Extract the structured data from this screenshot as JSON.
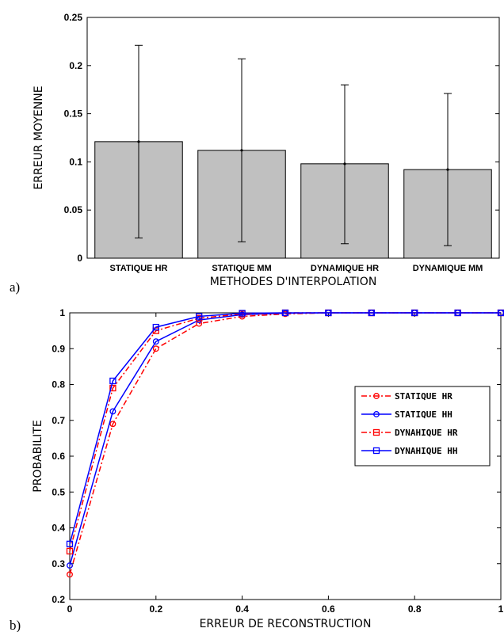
{
  "chart_data": [
    {
      "type": "bar",
      "panel_label": "a)",
      "categories": [
        "STATIQUE HR",
        "STATIQUE MM",
        "DYNAMIQUE HR",
        "DYNAMIQUE MM"
      ],
      "values": [
        0.121,
        0.112,
        0.098,
        0.092
      ],
      "error_low": [
        0.021,
        0.017,
        0.015,
        0.013
      ],
      "error_high": [
        0.221,
        0.207,
        0.18,
        0.171
      ],
      "xlabel": "METHODES D'INTERPOLATION",
      "ylabel": "ERREUR MOYENNE",
      "ylim": [
        0,
        0.25
      ],
      "yticks": [
        "0",
        "0.05",
        "0.1",
        "0.15",
        "0.2",
        "0.25"
      ],
      "colors": {
        "bar": "#c0c0c0"
      }
    },
    {
      "type": "line",
      "panel_label": "b)",
      "x": [
        0,
        0.1,
        0.2,
        0.3,
        0.4,
        0.5,
        0.6,
        0.7,
        0.8,
        0.9,
        1
      ],
      "series": [
        {
          "name": "STATIQUE HR",
          "values": [
            0.27,
            0.69,
            0.9,
            0.97,
            0.99,
            0.997,
            1,
            1,
            1,
            1,
            1
          ],
          "color": "#ff0000",
          "dash": "dashdot",
          "marker": "circle"
        },
        {
          "name": "STATIQUE HH",
          "values": [
            0.295,
            0.725,
            0.92,
            0.98,
            0.995,
            0.999,
            1,
            1,
            1,
            1,
            1
          ],
          "color": "#0000ff",
          "dash": "solid",
          "marker": "circle"
        },
        {
          "name": "DYNAHIQUE HR",
          "values": [
            0.335,
            0.79,
            0.95,
            0.985,
            0.997,
            1,
            1,
            1,
            1,
            1,
            1
          ],
          "color": "#ff0000",
          "dash": "dashdot",
          "marker": "square"
        },
        {
          "name": "DYNAHIQUE HH",
          "values": [
            0.355,
            0.81,
            0.96,
            0.99,
            0.999,
            1,
            1,
            1,
            1,
            1,
            1
          ],
          "color": "#0000ff",
          "dash": "solid",
          "marker": "square"
        }
      ],
      "xlabel": "ERREUR DE RECONSTRUCTION",
      "ylabel": "PROBABILITE",
      "xlim": [
        0,
        1
      ],
      "ylim": [
        0.2,
        1
      ],
      "xticks": [
        "0",
        "0.2",
        "0.4",
        "0.6",
        "0.8",
        "1"
      ],
      "yticks": [
        "0.2",
        "0.3",
        "0.4",
        "0.5",
        "0.6",
        "0.7",
        "0.8",
        "0.9",
        "1"
      ],
      "legend": "center-right"
    }
  ]
}
